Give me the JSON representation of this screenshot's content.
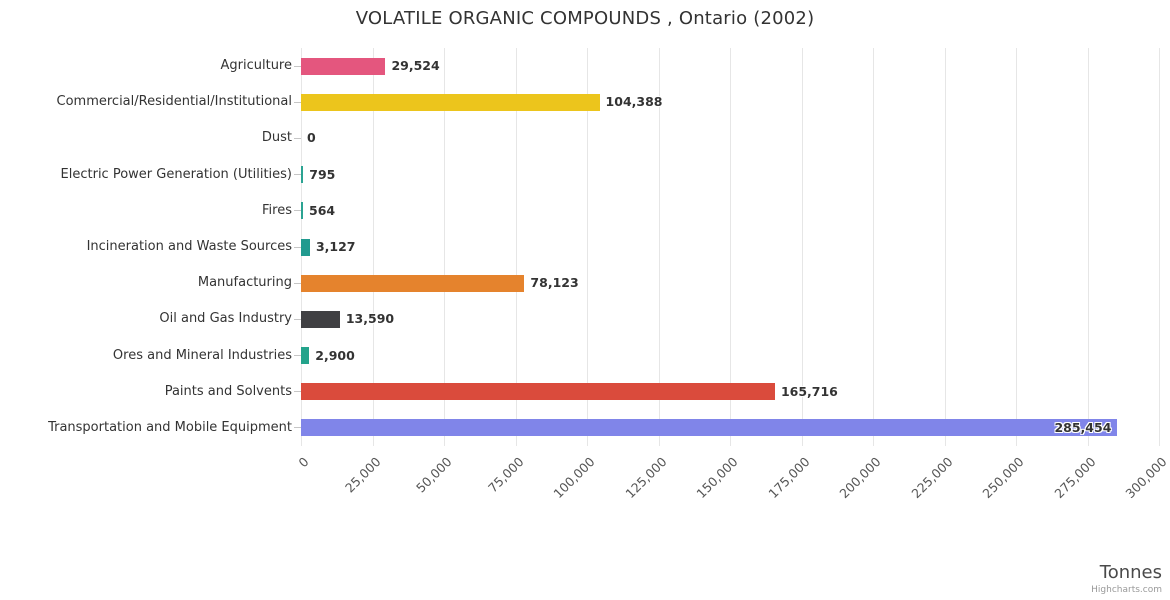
{
  "title": "VOLATILE ORGANIC COMPOUNDS , Ontario (2002)",
  "xlabel": "Tonnes",
  "credit": "Highcharts.com",
  "chart_data": {
    "type": "bar",
    "orientation": "horizontal",
    "title": "VOLATILE ORGANIC COMPOUNDS , Ontario (2002)",
    "xlabel": "Tonnes",
    "ylabel": "",
    "categories": [
      "Agriculture",
      "Commercial/Residential/Institutional",
      "Dust",
      "Electric Power Generation (Utilities)",
      "Fires",
      "Incineration and Waste Sources",
      "Manufacturing",
      "Oil and Gas Industry",
      "Ores and Mineral Industries",
      "Paints and Solvents",
      "Transportation and Mobile Equipment"
    ],
    "values": [
      29524,
      104388,
      0,
      795,
      564,
      3127,
      78123,
      13590,
      2900,
      165716,
      285454
    ],
    "value_labels": [
      "29,524",
      "104,388",
      "0",
      "795",
      "564",
      "3,127",
      "78,123",
      "13,590",
      "2,900",
      "165,716",
      "285,454"
    ],
    "colors": [
      "#e4567e",
      "#ecc51c",
      "#2ba392",
      "#2ba392",
      "#2ba392",
      "#219a8f",
      "#e5832d",
      "#404043",
      "#23a38b",
      "#da4b3c",
      "#8085e9"
    ],
    "xlim": [
      0,
      300000
    ],
    "tick_interval": 25000,
    "tick_labels": [
      "0",
      "25,000",
      "50,000",
      "75,000",
      "100,000",
      "125,000",
      "150,000",
      "175,000",
      "200,000",
      "225,000",
      "250,000",
      "275,000",
      "300,000"
    ],
    "grid": true,
    "legend": "none",
    "gridline_color": "#e6e6e6"
  }
}
